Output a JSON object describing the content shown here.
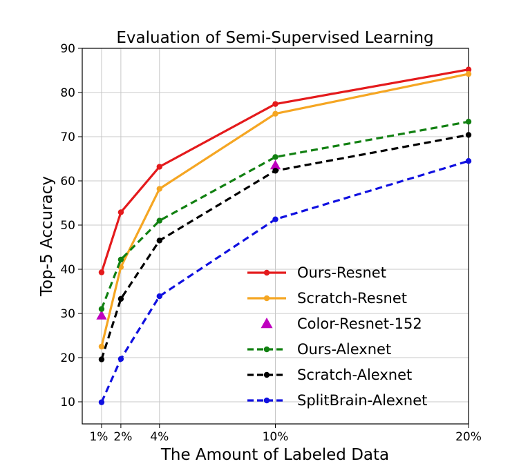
{
  "chart_data": {
    "type": "line",
    "title": "Evaluation of Semi-Supervised Learning",
    "xlabel": "The Amount of Labeled Data",
    "ylabel": "Top-5 Accuracy",
    "x": [
      1,
      2,
      4,
      10,
      20
    ],
    "xtick_labels": [
      "1%",
      "2%",
      "4%",
      "10%",
      "20%"
    ],
    "ylim": [
      5,
      90
    ],
    "yticks": [
      10,
      20,
      30,
      40,
      50,
      60,
      70,
      80,
      90
    ],
    "grid": true,
    "legend_position": "lower-right",
    "series": [
      {
        "name": "Ours-Resnet",
        "color": "#e41a1c",
        "style": "solid",
        "marker": "circle",
        "values": [
          39.3,
          52.9,
          63.2,
          77.4,
          85.2
        ]
      },
      {
        "name": "Scratch-Resnet",
        "color": "#f5a623",
        "style": "solid",
        "marker": "circle",
        "values": [
          22.5,
          40.5,
          58.2,
          75.2,
          84.2
        ]
      },
      {
        "name": "Color-Resnet-152",
        "color": "#bf00bf",
        "style": "none",
        "marker": "triangle",
        "points": [
          [
            1,
            29.5
          ],
          [
            10,
            63.5
          ]
        ]
      },
      {
        "name": "Ours-Alexnet",
        "color": "#118011",
        "style": "dashed",
        "marker": "circle",
        "values": [
          31.0,
          42.2,
          51.0,
          65.4,
          73.4
        ]
      },
      {
        "name": "Scratch-Alexnet",
        "color": "#000000",
        "style": "dashed",
        "marker": "circle",
        "values": [
          19.6,
          33.3,
          46.5,
          62.3,
          70.4
        ]
      },
      {
        "name": "SplitBrain-Alexnet",
        "color": "#1010e0",
        "style": "dashed",
        "marker": "circle",
        "values": [
          9.9,
          19.7,
          33.9,
          51.3,
          64.5
        ]
      }
    ]
  }
}
